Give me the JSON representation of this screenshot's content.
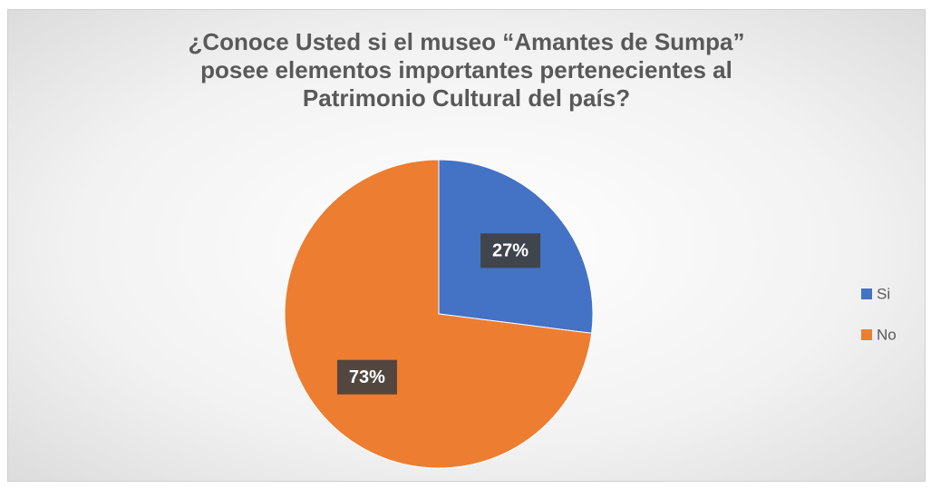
{
  "chart_data": {
    "type": "pie",
    "title": "¿Conoce Usted si el museo “Amantes de Sumpa” posee elementos importantes pertenecientes al Patrimonio Cultural del país?",
    "categories": [
      "Si",
      "No"
    ],
    "values": [
      27,
      73
    ],
    "value_labels": [
      "27%",
      "73%"
    ],
    "colors": [
      "#4472c4",
      "#ed7d31"
    ],
    "legend": "right"
  }
}
